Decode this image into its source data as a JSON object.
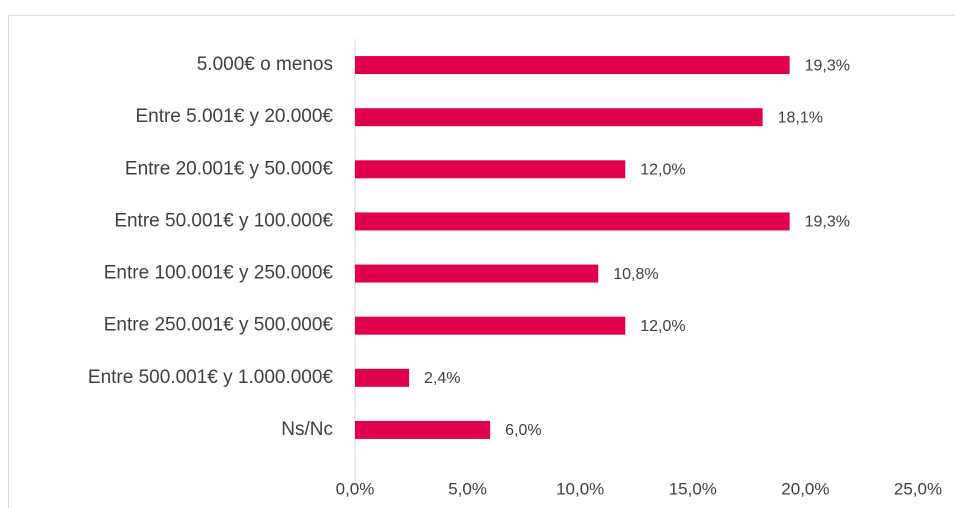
{
  "chart_data": {
    "type": "hbar",
    "categories": [
      "5.000€ o menos",
      "Entre 5.001€ y 20.000€",
      "Entre 20.001€ y 50.000€",
      "Entre 50.001€ y 100.000€",
      "Entre 100.001€ y 250.000€",
      "Entre 250.001€ y 500.000€",
      "Entre 500.001€ y 1.000.000€",
      "Ns/Nc"
    ],
    "values": [
      19.3,
      18.1,
      12.0,
      19.3,
      10.8,
      12.0,
      2.4,
      6.0
    ],
    "value_labels": [
      "19,3%",
      "18,1%",
      "12,0%",
      "19,3%",
      "10,8%",
      "12,0%",
      "2,4%",
      "6,0%"
    ],
    "color": "#e0004d",
    "xlim": [
      0,
      25
    ],
    "xticks": [
      {
        "value": 0,
        "label": "0,0%"
      },
      {
        "value": 5,
        "label": "5,0%"
      },
      {
        "value": 10,
        "label": "10,0%"
      },
      {
        "value": 15,
        "label": "15,0%"
      },
      {
        "value": 20,
        "label": "20,0%"
      },
      {
        "value": 25,
        "label": "25,0%"
      }
    ],
    "grid": false
  }
}
